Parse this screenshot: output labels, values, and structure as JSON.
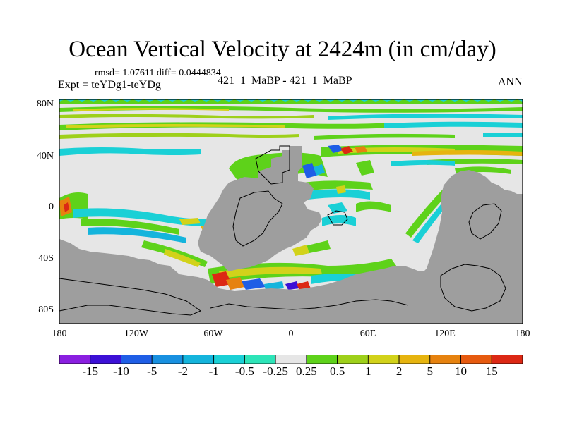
{
  "title": "Ocean Vertical Velocity at 2424m (in cm/day)",
  "stats": "rmsd= 1.07611 diff= 0.0444834",
  "expt": "Expt = teYDg1-teYDg",
  "center_label": "421_1_MaBP - 421_1_MaBP",
  "season": "ANN",
  "map": {
    "lat_ticks": [
      "80N",
      "40N",
      "0",
      "40S",
      "80S"
    ],
    "lon_ticks": [
      "180",
      "120W",
      "60W",
      "0",
      "60E",
      "120E",
      "180"
    ],
    "land_color": "#9e9e9e",
    "ocean_color": "#e6e6e6"
  },
  "colorbar": {
    "labels": [
      "-15",
      "-10",
      "-5",
      "-2",
      "-1",
      "-0.5",
      "-0.25",
      "0.25",
      "0.5",
      "1",
      "2",
      "5",
      "10",
      "15"
    ],
    "colors": [
      "#8a1fe0",
      "#3c10d6",
      "#1f5ee6",
      "#1890e0",
      "#14b4dc",
      "#1ad0d6",
      "#2de4b8",
      "#e6e6e6",
      "#5ed21a",
      "#9ed01a",
      "#d2d21a",
      "#e6b40f",
      "#e6820f",
      "#e65a0f",
      "#dc2814"
    ]
  }
}
